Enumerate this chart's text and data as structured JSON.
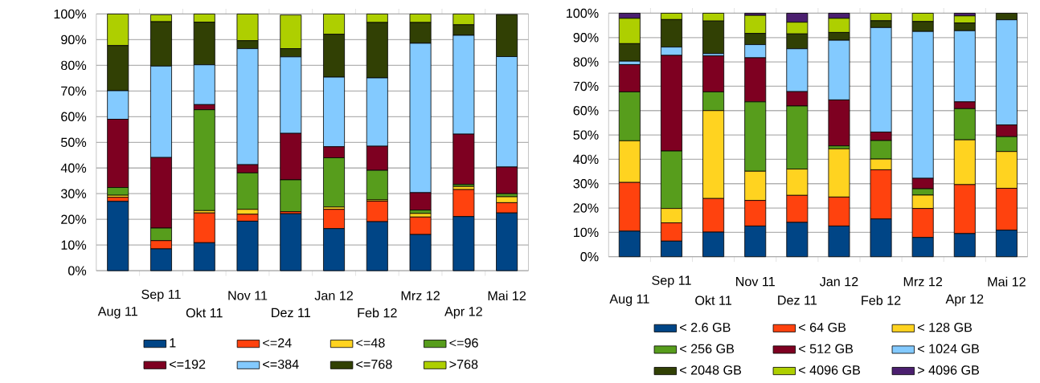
{
  "chart_data": [
    {
      "type": "bar",
      "stacked": true,
      "grid": "y",
      "legend": "bottom",
      "categories": [
        "Aug 11",
        "Sep 11",
        "Okt 11",
        "Nov 11",
        "Dez 11",
        "Jan 12",
        "Feb 12",
        "Mrz 12",
        "Apr 12",
        "Mai 12"
      ],
      "ylim": [
        0,
        100
      ],
      "yticks": [
        {
          "value": 0,
          "label": "0%"
        },
        {
          "value": 10,
          "label": "10%"
        },
        {
          "value": 20,
          "label": "20%"
        },
        {
          "value": 30,
          "label": "30%"
        },
        {
          "value": 40,
          "label": "40%"
        },
        {
          "value": 50,
          "label": "50%"
        },
        {
          "value": 60,
          "label": "60%"
        },
        {
          "value": 70,
          "label": "70%"
        },
        {
          "value": 80,
          "label": "80%"
        },
        {
          "value": 90,
          "label": "90%"
        },
        {
          "value": 100,
          "label": "100%"
        }
      ],
      "series": [
        {
          "name": "1",
          "color": "#004586",
          "values": [
            27,
            8.5,
            10.9,
            19.3,
            22.2,
            16.4,
            19.1,
            14.1,
            21.1,
            22.5
          ]
        },
        {
          "name": "<=24",
          "color": "#ff420e",
          "values": [
            1.6,
            3.2,
            11.6,
            2.7,
            0.8,
            7.5,
            8.0,
            6.8,
            10.5,
            4.0
          ]
        },
        {
          "name": "<=48",
          "color": "#ffd320",
          "values": [
            0.8,
            null,
            0.9,
            1.9,
            null,
            0.9,
            0.5,
            1.4,
            1.2,
            2.3
          ]
        },
        {
          "name": "<=96",
          "color": "#579d1c",
          "values": [
            3.0,
            4.9,
            39.3,
            14.2,
            12.4,
            19.2,
            11.5,
            1.3,
            0.8,
            1.2
          ]
        },
        {
          "name": "<=192",
          "color": "#7e0021",
          "values": [
            26.6,
            27.5,
            2.0,
            3.2,
            18.1,
            4.3,
            9.4,
            6.8,
            19.6,
            10.4
          ]
        },
        {
          "name": "<=384",
          "color": "#83caff",
          "values": [
            11.1,
            35.6,
            15.5,
            45.2,
            29.8,
            27.1,
            26.6,
            58.2,
            38.5,
            43.0
          ]
        },
        {
          "name": "<=768",
          "color": "#314004",
          "values": [
            17.6,
            17.3,
            16.6,
            3.1,
            3.2,
            16.7,
            21.6,
            8.1,
            4.1,
            16.4
          ]
        },
        {
          "name": ">768",
          "color": "#aecf00",
          "values": [
            12.3,
            2.7,
            3.2,
            10.4,
            13.1,
            7.9,
            3.3,
            3.3,
            4.2,
            null
          ]
        }
      ]
    },
    {
      "type": "bar",
      "stacked": true,
      "grid": "y",
      "legend": "bottom",
      "categories": [
        "Aug 11",
        "Sep 11",
        "Okt 11",
        "Nov 11",
        "Dez 11",
        "Jan 12",
        "Feb 12",
        "Mrz 12",
        "Apr 12",
        "Mai 12"
      ],
      "ylim": [
        0,
        100
      ],
      "yticks": [
        {
          "value": 0,
          "label": "0%"
        },
        {
          "value": 10,
          "label": "10%"
        },
        {
          "value": 20,
          "label": "20%"
        },
        {
          "value": 30,
          "label": "30%"
        },
        {
          "value": 40,
          "label": "40%"
        },
        {
          "value": 50,
          "label": "50%"
        },
        {
          "value": 60,
          "label": "60%"
        },
        {
          "value": 70,
          "label": "70%"
        },
        {
          "value": 80,
          "label": "80%"
        },
        {
          "value": 90,
          "label": "90%"
        },
        {
          "value": 100,
          "label": "100%"
        }
      ],
      "series": [
        {
          "name": "< 2.6 GB",
          "color": "#004586",
          "values": [
            10.5,
            6.4,
            10.1,
            12.6,
            14.1,
            12.6,
            15.5,
            7.9,
            9.5,
            10.9
          ]
        },
        {
          "name": "< 64 GB",
          "color": "#ff420e",
          "values": [
            20.0,
            7.5,
            13.8,
            10.5,
            11.1,
            11.9,
            20.2,
            11.9,
            20.1,
            17.2
          ]
        },
        {
          "name": "< 128 GB",
          "color": "#ffd320",
          "values": [
            17.1,
            5.9,
            36.1,
            12.0,
            10.8,
            19.8,
            4.4,
            5.5,
            18.4,
            15.1
          ]
        },
        {
          "name": "< 256 GB",
          "color": "#579d1c",
          "values": [
            20.1,
            23.6,
            7.7,
            28.5,
            25.9,
            1.2,
            7.6,
            2.6,
            12.8,
            6.1
          ]
        },
        {
          "name": "< 512 GB",
          "color": "#7e0021",
          "values": [
            11.2,
            39.3,
            14.8,
            18.1,
            5.9,
            18.9,
            3.5,
            4.3,
            2.8,
            4.8
          ]
        },
        {
          "name": "< 1024 GB",
          "color": "#83caff",
          "values": [
            1.4,
            3.4,
            0.9,
            5.4,
            17.6,
            24.5,
            42.9,
            60.3,
            29.2,
            43.2
          ]
        },
        {
          "name": "< 2048 GB",
          "color": "#314004",
          "values": [
            7.2,
            11.3,
            13.4,
            4.6,
            6.1,
            3.2,
            2.8,
            4.1,
            3.2,
            2.7
          ]
        },
        {
          "name": "< 4096 GB",
          "color": "#aecf00",
          "values": [
            10.4,
            2.6,
            3.2,
            7.4,
            4.8,
            5.8,
            3.1,
            3.4,
            2.9,
            0
          ]
        },
        {
          "name": "> 4096 GB",
          "color": "#4b1f6f",
          "values": [
            2.1,
            0,
            0,
            0.9,
            3.7,
            2.1,
            0,
            0,
            1.1,
            0
          ]
        }
      ]
    }
  ]
}
